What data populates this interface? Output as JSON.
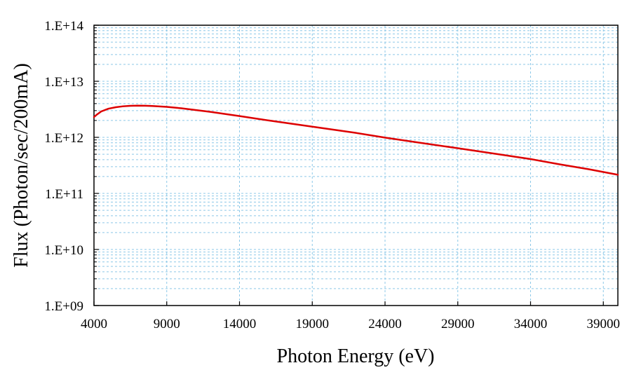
{
  "chart_data": {
    "type": "line",
    "xlabel": "Photon Energy (eV)",
    "ylabel": "Flux (Photon/sec/200mA)",
    "xlim": [
      4000,
      40000
    ],
    "ylim": [
      1000000000.0,
      100000000000000.0
    ],
    "yscale": "log",
    "x_ticks": [
      4000,
      9000,
      14000,
      19000,
      24000,
      29000,
      34000,
      39000
    ],
    "x_tick_labels": [
      "4000",
      "9000",
      "14000",
      "19000",
      "24000",
      "29000",
      "34000",
      "39000"
    ],
    "y_ticks": [
      1000000000.0,
      10000000000.0,
      100000000000.0,
      1000000000000.0,
      10000000000000.0,
      100000000000000.0
    ],
    "y_tick_labels": [
      "1.E+09",
      "1.E+10",
      "1.E+11",
      "1.E+12",
      "1.E+13",
      "1.E+14"
    ],
    "grid": true,
    "series": [
      {
        "color": "#dd0000",
        "x": [
          4000,
          4200,
          4500,
          5000,
          5500,
          6000,
          6500,
          7000,
          7500,
          8000,
          9000,
          10000,
          12000,
          14000,
          16000,
          19000,
          22000,
          24000,
          26000,
          29000,
          32000,
          34000,
          36000,
          38000,
          40000
        ],
        "y": [
          2300000000000.0,
          2550000000000.0,
          2900000000000.0,
          3250000000000.0,
          3450000000000.0,
          3580000000000.0,
          3650000000000.0,
          3680000000000.0,
          3670000000000.0,
          3620000000000.0,
          3500000000000.0,
          3300000000000.0,
          2850000000000.0,
          2400000000000.0,
          2000000000000.0,
          1550000000000.0,
          1200000000000.0,
          990000000000.0,
          830000000000.0,
          640000000000.0,
          490000000000.0,
          410000000000.0,
          330000000000.0,
          270000000000.0,
          215000000000.0
        ]
      }
    ]
  },
  "colors": {
    "grid": "#8cc8e8",
    "line": "#dd0000"
  }
}
